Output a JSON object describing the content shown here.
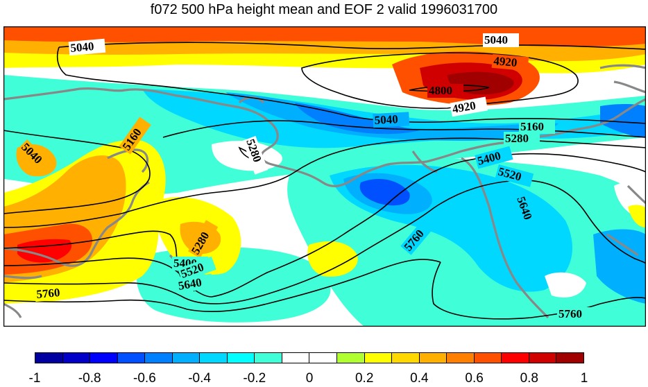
{
  "title": "f072 500 hPa height mean and EOF 2 valid 1996031700",
  "contour_labels": [
    "5040",
    "5040",
    "4920",
    "4800",
    "4920",
    "5040",
    "5160",
    "5280",
    "5160",
    "5040",
    "5280",
    "5400",
    "5520",
    "5640",
    "5760",
    "5280",
    "5400",
    "5520",
    "5640",
    "5760",
    "5760"
  ],
  "colorbar": {
    "colors": [
      "#0000a0",
      "#0000c8",
      "#0000ff",
      "#0050ff",
      "#0080ff",
      "#00b0ff",
      "#00d8ff",
      "#00ffff",
      "#40ffd8",
      "#ffffff",
      "#ffffff",
      "#b0ff30",
      "#ffff00",
      "#ffd800",
      "#ffb000",
      "#ff8000",
      "#ff5000",
      "#ff0000",
      "#d00000",
      "#a00000"
    ],
    "tick_labels": [
      "-1",
      "-0.8",
      "-0.6",
      "-0.4",
      "-0.2",
      "0",
      "0.2",
      "0.4",
      "0.6",
      "0.8",
      "1"
    ]
  },
  "colors": {
    "coast": "#888888",
    "contour": "#000000"
  }
}
